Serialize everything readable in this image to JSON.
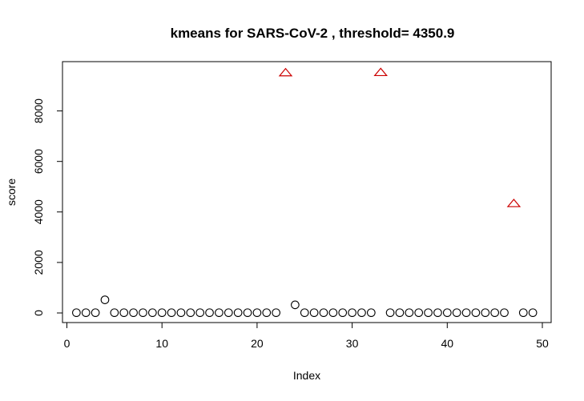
{
  "chart_data": {
    "type": "scatter",
    "title": "kmeans for  SARS-CoV-2 , threshold= 4350.9",
    "xlabel": "Index",
    "ylabel": "score",
    "xlim": [
      0,
      50
    ],
    "ylim": [
      0,
      9600
    ],
    "xticks": [
      0,
      10,
      20,
      30,
      40,
      50
    ],
    "yticks": [
      0,
      2000,
      4000,
      6000,
      8000
    ],
    "grid": false,
    "legend": "none",
    "colors": {
      "normal": "#000000",
      "outlier": "#cc0000"
    },
    "series": [
      {
        "marker": "circle",
        "color": "#000000",
        "points": [
          [
            1,
            10
          ],
          [
            2,
            10
          ],
          [
            3,
            10
          ],
          [
            4,
            520
          ],
          [
            5,
            10
          ],
          [
            6,
            10
          ],
          [
            7,
            10
          ],
          [
            8,
            10
          ],
          [
            9,
            10
          ],
          [
            10,
            10
          ],
          [
            11,
            10
          ],
          [
            12,
            10
          ],
          [
            13,
            10
          ],
          [
            14,
            10
          ],
          [
            15,
            10
          ],
          [
            16,
            10
          ],
          [
            17,
            10
          ],
          [
            18,
            10
          ],
          [
            19,
            10
          ],
          [
            20,
            10
          ],
          [
            21,
            10
          ],
          [
            22,
            10
          ],
          [
            24,
            320
          ],
          [
            25,
            10
          ],
          [
            26,
            10
          ],
          [
            27,
            10
          ],
          [
            28,
            10
          ],
          [
            29,
            10
          ],
          [
            30,
            10
          ],
          [
            31,
            10
          ],
          [
            32,
            10
          ],
          [
            34,
            10
          ],
          [
            35,
            10
          ],
          [
            36,
            10
          ],
          [
            37,
            10
          ],
          [
            38,
            10
          ],
          [
            39,
            10
          ],
          [
            40,
            10
          ],
          [
            41,
            10
          ],
          [
            42,
            10
          ],
          [
            43,
            10
          ],
          [
            44,
            10
          ],
          [
            45,
            10
          ],
          [
            46,
            10
          ],
          [
            48,
            10
          ],
          [
            49,
            10
          ]
        ]
      },
      {
        "marker": "triangle",
        "color": "#cc0000",
        "points": [
          [
            23,
            9550
          ],
          [
            33,
            9560
          ],
          [
            47,
            4370
          ]
        ]
      }
    ]
  }
}
